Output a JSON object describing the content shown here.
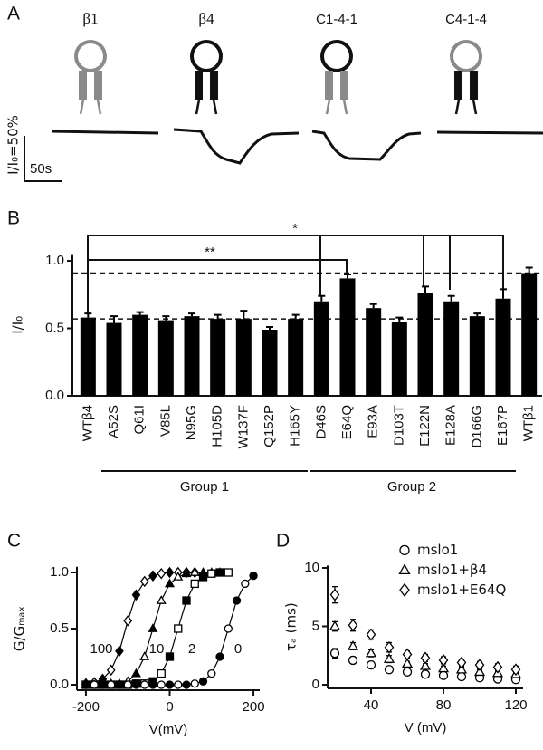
{
  "panel_labels": [
    "A",
    "B",
    "C",
    "D"
  ],
  "panel_a": {
    "constructs": [
      "β1",
      "β4",
      "C1-4-1",
      "C4-1-4"
    ],
    "scale_bar": {
      "y_label": "I/I₀=50%",
      "x_label": "50s"
    }
  },
  "chart_data": [
    {
      "type": "bar",
      "ylabel": "I/I₀",
      "categories": [
        "WTβ4",
        "A52S",
        "Q61I",
        "V85L",
        "N95G",
        "H105D",
        "W137F",
        "Q152P",
        "H165Y",
        "D46S",
        "E64Q",
        "E93A",
        "D103T",
        "E122N",
        "E128A",
        "D166G",
        "E167P",
        "WTβ1"
      ],
      "values": [
        0.58,
        0.54,
        0.6,
        0.56,
        0.59,
        0.57,
        0.57,
        0.49,
        0.57,
        0.7,
        0.87,
        0.65,
        0.55,
        0.76,
        0.7,
        0.59,
        0.72,
        0.91
      ],
      "errors": [
        0.03,
        0.05,
        0.02,
        0.03,
        0.02,
        0.03,
        0.06,
        0.02,
        0.03,
        0.04,
        0.03,
        0.03,
        0.03,
        0.05,
        0.04,
        0.02,
        0.07,
        0.04
      ],
      "color": "#000000",
      "ylim": [
        0,
        1.05
      ],
      "yticks": [
        {
          "value": 0,
          "label": "0.0"
        },
        {
          "value": 0.5,
          "label": "0.5"
        },
        {
          "value": 1,
          "label": "1.0"
        }
      ],
      "reference_lines": [
        0.91,
        0.57
      ],
      "annotations": [
        {
          "text": "*"
        },
        {
          "text": "**"
        }
      ],
      "groups": [
        {
          "label": "Group 1"
        },
        {
          "label": "Group 2"
        }
      ]
    },
    {
      "type": "line",
      "xlabel": "V(mV)",
      "ylabel": "G/Gₘₐₓ",
      "x": [
        -200,
        -180,
        -160,
        -140,
        -120,
        -100,
        -80,
        -60,
        -40,
        -20,
        0,
        20,
        40,
        60,
        80,
        100,
        120,
        140,
        160,
        180,
        200
      ],
      "series": [
        {
          "name": "100",
          "marker": "diamond",
          "color": "#000000",
          "values": [
            0.01,
            0.02,
            0.05,
            0.13,
            0.3,
            0.57,
            0.8,
            0.92,
            0.97,
            0.99,
            1.0,
            1.0,
            1.0,
            1.0,
            null,
            null,
            null,
            null,
            null,
            null,
            null
          ]
        },
        {
          "name": "10",
          "marker": "triangle",
          "color": "#000000",
          "values": [
            0.0,
            0.0,
            0.0,
            0.01,
            0.01,
            0.03,
            0.1,
            0.25,
            0.5,
            0.75,
            0.9,
            0.96,
            0.99,
            1.0,
            1.0,
            1.0,
            1.0,
            null,
            null,
            null,
            null
          ]
        },
        {
          "name": "2",
          "marker": "square",
          "color": "#000000",
          "values": [
            0.0,
            0.0,
            0.0,
            0.0,
            0.0,
            0.0,
            0.01,
            0.01,
            0.03,
            0.1,
            0.25,
            0.5,
            0.75,
            0.9,
            0.96,
            0.99,
            1.0,
            1.0,
            null,
            null,
            null
          ]
        },
        {
          "name": "0",
          "marker": "circle",
          "color": "#000000",
          "values": [
            0.0,
            0.0,
            0.0,
            0.0,
            0.0,
            0.0,
            0.0,
            0.0,
            0.0,
            0.0,
            0.0,
            0.0,
            0.0,
            0.01,
            0.03,
            0.1,
            0.25,
            0.5,
            0.75,
            0.9,
            0.97
          ]
        }
      ],
      "xlim": [
        -210,
        215
      ],
      "xticks": [
        -200,
        0,
        200
      ],
      "ylim": [
        -0.05,
        1.05
      ],
      "yticks": [
        {
          "value": 0,
          "label": "0.0"
        },
        {
          "value": 0.5,
          "label": "0.5"
        },
        {
          "value": 1,
          "label": "1.0"
        }
      ]
    },
    {
      "type": "scatter",
      "xlabel": "V (mV)",
      "ylabel": "τₐ (ms)",
      "legend": "top-right",
      "x": [
        20,
        30,
        40,
        50,
        60,
        70,
        80,
        90,
        100,
        110,
        120
      ],
      "series": [
        {
          "name": "mslo1",
          "marker": "circle",
          "color": "#000000",
          "values": [
            2.7,
            2.1,
            1.7,
            1.3,
            1.1,
            0.9,
            0.8,
            0.7,
            0.6,
            0.5,
            0.45
          ],
          "errors": [
            0.4,
            0.3,
            0.3,
            0.2,
            0.2,
            0.2,
            0.2,
            0.2,
            0.2,
            0.2,
            0.2
          ]
        },
        {
          "name": "mslo1+β4",
          "marker": "triangle",
          "color": "#000000",
          "values": [
            5.0,
            3.3,
            2.7,
            2.2,
            1.8,
            1.6,
            1.4,
            1.3,
            1.1,
            1.0,
            0.9
          ],
          "errors": [
            0.4,
            0.3,
            0.3,
            0.3,
            0.2,
            0.2,
            0.2,
            0.2,
            0.2,
            0.2,
            0.2
          ]
        },
        {
          "name": "mslo1+E64Q",
          "marker": "diamond",
          "color": "#000000",
          "values": [
            7.7,
            5.1,
            4.3,
            3.2,
            2.6,
            2.3,
            2.1,
            1.9,
            1.7,
            1.5,
            1.3
          ],
          "errors": [
            0.7,
            0.5,
            0.4,
            0.4,
            0.3,
            0.3,
            0.3,
            0.3,
            0.3,
            0.3,
            0.3
          ]
        }
      ],
      "xlim": [
        16,
        124
      ],
      "xticks": [
        40,
        80,
        120
      ],
      "ylim": [
        -0.3,
        10.2
      ],
      "yticks": [
        0,
        5,
        10
      ]
    }
  ]
}
